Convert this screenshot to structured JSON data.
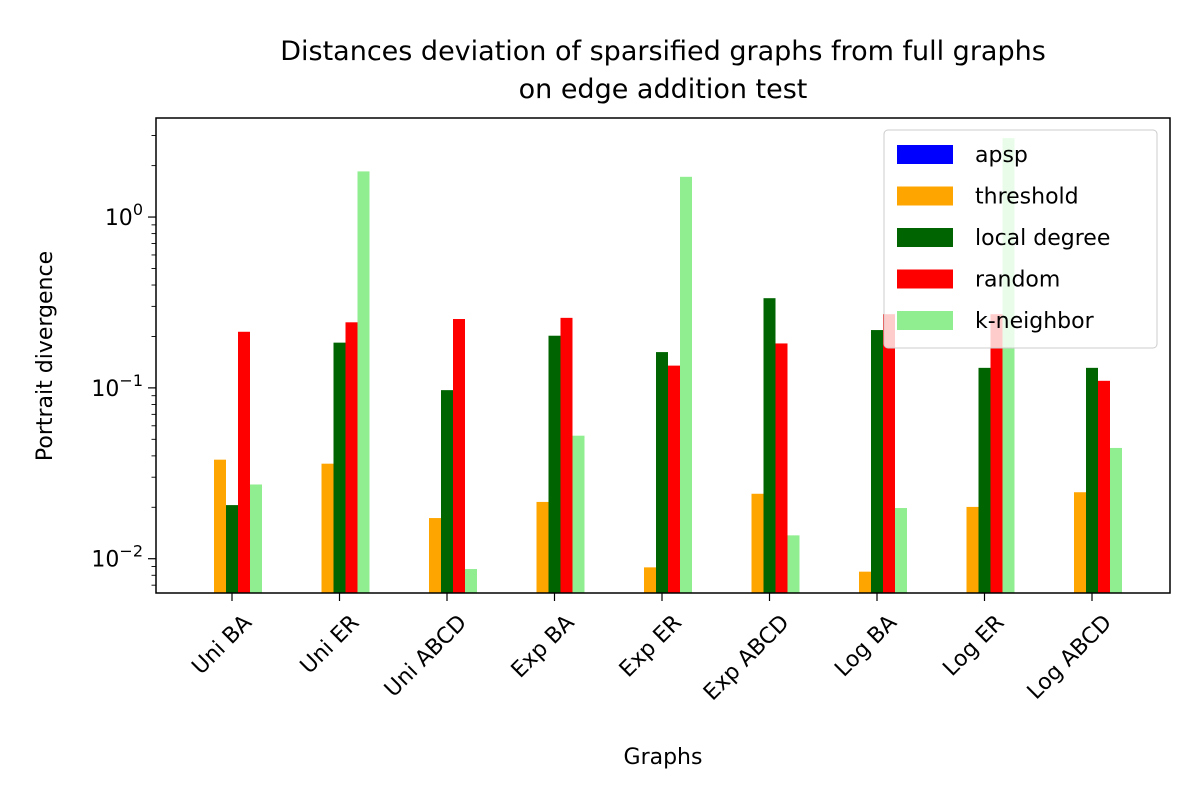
{
  "chart_data": {
    "type": "bar",
    "title_lines": [
      "Distances deviation of sparsified graphs from full graphs",
      "on edge addition test"
    ],
    "xlabel": "Graphs",
    "ylabel": "Portrait divergence",
    "yscale": "log",
    "ylim": [
      0.0063,
      3.8
    ],
    "yticks": [
      {
        "value": 0.01,
        "base": "10",
        "exp": "−2"
      },
      {
        "value": 0.1,
        "base": "10",
        "exp": "−1"
      },
      {
        "value": 1,
        "base": "10",
        "exp": "0"
      }
    ],
    "categories": [
      "Uni BA",
      "Uni ER",
      "Uni ABCD",
      "Exp BA",
      "Exp ER",
      "Exp ABCD",
      "Log BA",
      "Log ER",
      "Log ABCD"
    ],
    "series": [
      {
        "name": "apsp",
        "color": "#0000ff",
        "values": [
          null,
          null,
          null,
          null,
          null,
          null,
          null,
          null,
          null
        ]
      },
      {
        "name": "threshold",
        "color": "#ffa500",
        "values": [
          0.038,
          0.036,
          0.0173,
          0.0215,
          0.0089,
          0.024,
          0.0084,
          0.0201,
          0.0245
        ]
      },
      {
        "name": "local degree",
        "color": "#006400",
        "values": [
          0.0206,
          0.184,
          0.097,
          0.202,
          0.162,
          0.335,
          0.218,
          0.131,
          0.131
        ]
      },
      {
        "name": "random",
        "color": "#ff0000",
        "values": [
          0.213,
          0.242,
          0.253,
          0.257,
          0.135,
          0.182,
          0.27,
          0.27,
          0.11
        ]
      },
      {
        "name": "k-neighbor",
        "color": "#90ee90",
        "values": [
          0.0272,
          1.85,
          0.0087,
          0.0525,
          1.72,
          0.0137,
          0.0198,
          2.9,
          0.0445
        ]
      }
    ],
    "legend_position": "top-right",
    "grid": false
  }
}
